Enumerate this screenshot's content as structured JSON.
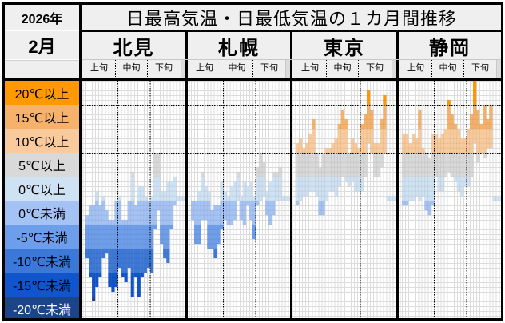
{
  "header": {
    "year": "2026年",
    "month": "2月",
    "title": "日最高気温・日最低気温の１カ月間推移",
    "periods": [
      "上旬",
      "中旬",
      "下旬"
    ]
  },
  "bands": [
    {
      "label": "20℃以上",
      "min": 20,
      "color": "#ff9900",
      "text": "#000000"
    },
    {
      "label": "15℃以上",
      "min": 15,
      "color": "#f6b26b",
      "text": "#000000"
    },
    {
      "label": "10℃以上",
      "min": 10,
      "color": "#f9cb9c",
      "text": "#000000"
    },
    {
      "label": "5℃以上",
      "min": 5,
      "color": "#d9d9d9",
      "text": "#000000"
    },
    {
      "label": "0℃以上",
      "min": 0,
      "color": "#cfe2f3",
      "text": "#000000"
    },
    {
      "label": "0℃未満",
      "min": -5,
      "color": "#a4c2f4",
      "text": "#000000"
    },
    {
      "label": "-5℃未満",
      "min": -10,
      "color": "#6d9eeb",
      "text": "#000000"
    },
    {
      "label": "-10℃未満",
      "min": -15,
      "color": "#3c78d8",
      "text": "#000000"
    },
    {
      "label": "-15℃未満",
      "min": -20,
      "color": "#1155cc",
      "text": "#000000"
    },
    {
      "label": "-20℃未満",
      "min": -25,
      "color": "#1c4587",
      "text": "#ffffff"
    }
  ],
  "chart_data": {
    "type": "bar",
    "title": "日最高気温・日最低気温の１カ月間推移",
    "xlabel": "2月 (上旬・中旬・下旬)",
    "ylabel": "℃",
    "ylim": [
      -25,
      25
    ],
    "days": [
      1,
      2,
      3,
      4,
      5,
      6,
      7,
      8,
      9,
      10,
      11,
      12,
      13,
      14,
      15,
      16,
      17,
      18,
      19,
      20,
      21,
      22,
      23,
      24,
      25,
      26,
      27,
      28,
      29,
      30,
      31
    ],
    "series": [
      {
        "name": "北見",
        "high": [
          -3,
          -1,
          -1,
          2,
          -1,
          1,
          -2,
          -4,
          -4,
          0,
          1,
          -4,
          -4,
          0,
          6,
          -1,
          3,
          3,
          1,
          0,
          1,
          10,
          10,
          2,
          2,
          4,
          4,
          5,
          1,
          1,
          1
        ],
        "low": [
          -12,
          -16,
          -21,
          -18,
          -16,
          -12,
          -11,
          -18,
          -19,
          -18,
          -14,
          -16,
          -17,
          -14,
          -20,
          -16,
          -20,
          -16,
          -15,
          -14,
          -15,
          -6,
          -2,
          -9,
          -12,
          -13,
          -6,
          -1,
          0,
          0,
          0
        ]
      },
      {
        "name": "札幌",
        "high": [
          0,
          0,
          2,
          6,
          3,
          2,
          -2,
          -1,
          -1,
          4,
          2,
          1,
          3,
          4,
          6,
          1,
          4,
          3,
          4,
          1,
          7,
          10,
          8,
          2,
          4,
          6,
          6,
          7,
          1,
          1,
          1
        ],
        "low": [
          -4,
          -9,
          -9,
          -4,
          -4,
          -10,
          -10,
          -12,
          -9,
          -6,
          -4,
          -5,
          -5,
          -4,
          0,
          -4,
          -5,
          -1,
          -4,
          -8,
          -1,
          0,
          1,
          -3,
          -5,
          -3,
          0,
          0,
          0,
          0,
          0
        ]
      },
      {
        "name": "東京",
        "high": [
          12,
          13,
          11,
          12,
          14,
          17,
          10,
          7,
          10,
          11,
          11,
          12,
          13,
          16,
          19,
          17,
          10,
          13,
          12,
          11,
          16,
          18,
          23,
          19,
          12,
          12,
          17,
          22,
          1,
          1,
          1
        ],
        "low": [
          -1,
          0,
          1,
          1,
          2,
          2,
          1,
          -3,
          -3,
          0,
          2,
          2,
          1,
          3,
          5,
          4,
          3,
          4,
          2,
          2,
          2,
          5,
          12,
          10,
          5,
          5,
          7,
          10,
          0,
          0,
          0
        ]
      },
      {
        "name": "静岡",
        "high": [
          14,
          14,
          12,
          14,
          13,
          19,
          11,
          10,
          9,
          14,
          14,
          13,
          14,
          15,
          21,
          18,
          16,
          15,
          13,
          13,
          15,
          18,
          25,
          19,
          16,
          20,
          17,
          20,
          1,
          1,
          1
        ],
        "low": [
          -1,
          -1,
          0,
          0,
          1,
          0,
          1,
          -2,
          -3,
          -1,
          5,
          2,
          2,
          5,
          6,
          5,
          4,
          2,
          1,
          3,
          3,
          5,
          12,
          8,
          10,
          9,
          11,
          11,
          0,
          0,
          0
        ]
      }
    ]
  }
}
